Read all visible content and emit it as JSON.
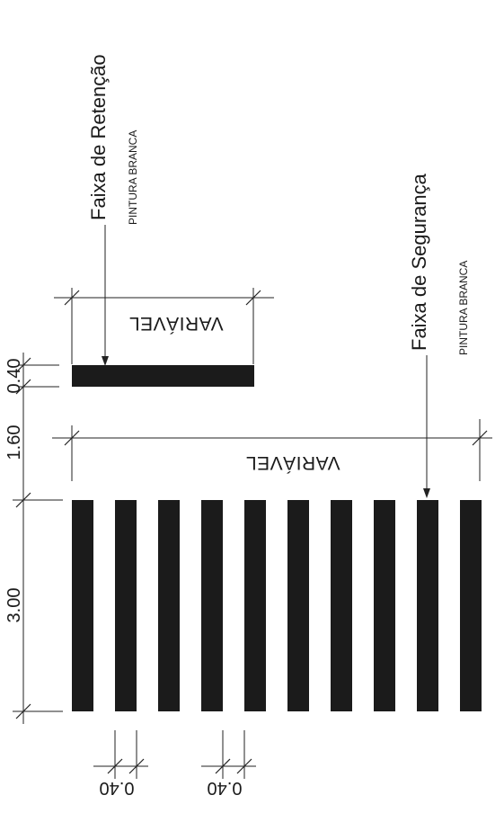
{
  "labels": {
    "retencao_title": "Faixa de Retenção",
    "retencao_sub": "PINTURA BRANCA",
    "seguranca_title": "Faixa de Segurança",
    "seguranca_sub": "PINTURA BRANCA",
    "variavel_top": "VARIÁVEL",
    "variavel_mid": "VARIÁVEL"
  },
  "dimensions": {
    "d_040_a": "0.40",
    "d_160": "1.60",
    "d_300": "3.00",
    "d_bottom_1": "0.40",
    "d_bottom_2": "0.40"
  },
  "colors": {
    "paint": "#1b1b1b",
    "line": "#222222",
    "background": "#ffffff"
  },
  "stripes": {
    "count": 10
  }
}
